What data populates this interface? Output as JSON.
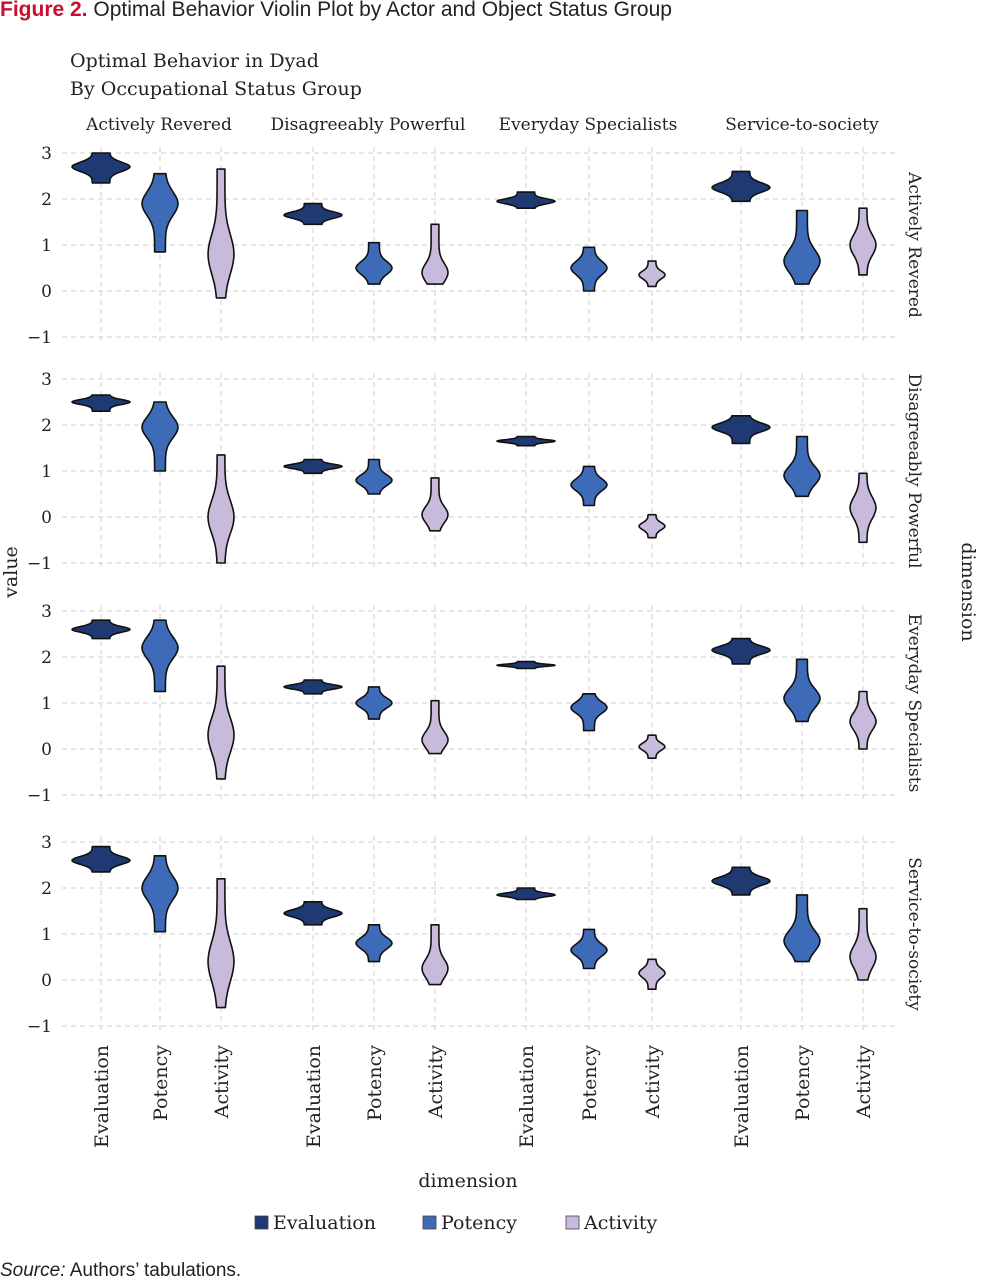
{
  "figure": {
    "label": "Figure 2.",
    "caption": "Optimal Behavior Violin Plot by Actor and Object Status Group",
    "source_label": "Source:",
    "source_text": "Authors’ tabulations."
  },
  "chart_data": {
    "type": "violin",
    "title": "Optimal Behavior in Dyad",
    "subtitle": "By Occupational Status Group",
    "xlabel": "dimension",
    "ylabel": "value",
    "strip_right_label": "dimension",
    "ylim": [
      -1,
      3
    ],
    "y_ticks": [
      "3",
      "2",
      "1",
      "0",
      "−1"
    ],
    "grid": true,
    "legend_position": "bottom",
    "column_facets": [
      "Actively Revered",
      "Disagreeably Powerful",
      "Everyday Specialists",
      "Service-to-society"
    ],
    "row_facets": [
      "Actively Revered",
      "Disagreeably Powerful",
      "Everyday Specialists",
      "Service-to-society"
    ],
    "categories": [
      "Evaluation",
      "Potency",
      "Activity"
    ],
    "colors": {
      "Evaluation": "#1f3a73",
      "Potency": "#3d6bb8",
      "Activity": "#c7badb",
      "outline": "#111111",
      "grid": "#cfcfcf"
    },
    "legend": [
      "Evaluation",
      "Potency",
      "Activity"
    ],
    "panels": [
      [
        {
          "Evaluation": [
            2.35,
            3.0,
            2.7
          ],
          "Potency": [
            0.85,
            2.55,
            1.9
          ],
          "Activity": [
            -0.15,
            2.65,
            0.8
          ]
        },
        {
          "Evaluation": [
            1.45,
            1.9,
            1.65
          ],
          "Potency": [
            0.15,
            1.05,
            0.5
          ],
          "Activity": [
            0.15,
            1.45,
            0.4
          ]
        },
        {
          "Evaluation": [
            1.8,
            2.15,
            1.95
          ],
          "Potency": [
            0.0,
            0.95,
            0.5
          ],
          "Activity": [
            0.1,
            0.65,
            0.35
          ]
        },
        {
          "Evaluation": [
            1.95,
            2.6,
            2.25
          ],
          "Potency": [
            0.15,
            1.75,
            0.65
          ],
          "Activity": [
            0.35,
            1.8,
            1.0
          ]
        }
      ],
      [
        {
          "Evaluation": [
            2.3,
            2.65,
            2.5
          ],
          "Potency": [
            1.0,
            2.5,
            1.95
          ],
          "Activity": [
            -1.0,
            1.35,
            0.0
          ]
        },
        {
          "Evaluation": [
            0.95,
            1.25,
            1.1
          ],
          "Potency": [
            0.5,
            1.25,
            0.8
          ],
          "Activity": [
            -0.3,
            0.85,
            0.05
          ]
        },
        {
          "Evaluation": [
            1.55,
            1.75,
            1.65
          ],
          "Potency": [
            0.25,
            1.1,
            0.7
          ],
          "Activity": [
            -0.45,
            0.05,
            -0.2
          ]
        },
        {
          "Evaluation": [
            1.6,
            2.2,
            1.95
          ],
          "Potency": [
            0.45,
            1.75,
            0.9
          ],
          "Activity": [
            -0.55,
            0.95,
            0.2
          ]
        }
      ],
      [
        {
          "Evaluation": [
            2.4,
            2.8,
            2.6
          ],
          "Potency": [
            1.25,
            2.8,
            2.2
          ],
          "Activity": [
            -0.65,
            1.8,
            0.3
          ]
        },
        {
          "Evaluation": [
            1.2,
            1.5,
            1.35
          ],
          "Potency": [
            0.65,
            1.35,
            1.0
          ],
          "Activity": [
            -0.1,
            1.05,
            0.2
          ]
        },
        {
          "Evaluation": [
            1.75,
            1.9,
            1.82
          ],
          "Potency": [
            0.4,
            1.2,
            0.9
          ],
          "Activity": [
            -0.2,
            0.3,
            0.05
          ]
        },
        {
          "Evaluation": [
            1.85,
            2.4,
            2.15
          ],
          "Potency": [
            0.6,
            1.95,
            1.1
          ],
          "Activity": [
            0.0,
            1.25,
            0.6
          ]
        }
      ],
      [
        {
          "Evaluation": [
            2.35,
            2.9,
            2.6
          ],
          "Potency": [
            1.05,
            2.7,
            2.0
          ],
          "Activity": [
            -0.6,
            2.2,
            0.4
          ]
        },
        {
          "Evaluation": [
            1.2,
            1.7,
            1.45
          ],
          "Potency": [
            0.4,
            1.2,
            0.8
          ],
          "Activity": [
            -0.1,
            1.2,
            0.25
          ]
        },
        {
          "Evaluation": [
            1.75,
            2.0,
            1.85
          ],
          "Potency": [
            0.25,
            1.1,
            0.65
          ],
          "Activity": [
            -0.2,
            0.45,
            0.15
          ]
        },
        {
          "Evaluation": [
            1.85,
            2.45,
            2.15
          ],
          "Potency": [
            0.4,
            1.85,
            0.85
          ],
          "Activity": [
            0.0,
            1.55,
            0.5
          ]
        }
      ]
    ]
  }
}
